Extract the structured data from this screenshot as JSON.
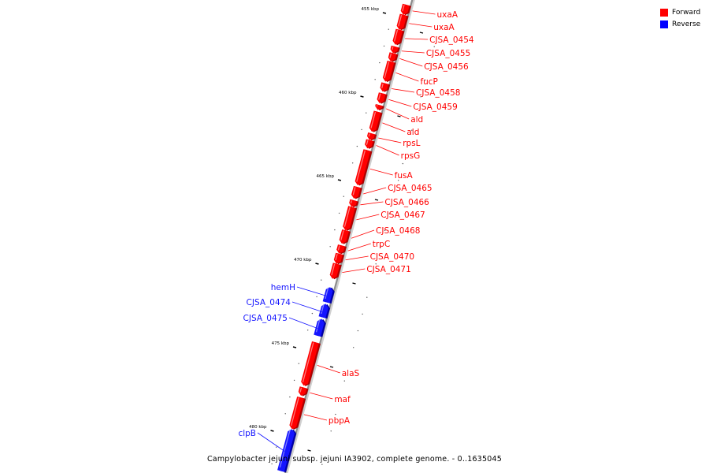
{
  "caption": "Campylobacter jejuni subsp. jejuni IA3902, complete genome. - 0..1635045",
  "legend": [
    {
      "label": "Forward",
      "color": "#ff0000"
    },
    {
      "label": "Reverse",
      "color": "#0000ff"
    }
  ],
  "colors": {
    "forward": "#ff0000",
    "reverse": "#1515ff",
    "backbone": "#8c8c8c"
  },
  "ticks": [
    {
      "kbp": 455,
      "label": "455 kbp"
    },
    {
      "kbp": 460,
      "label": "460 kbp"
    },
    {
      "kbp": 465,
      "label": "465 kbp"
    },
    {
      "kbp": 470,
      "label": "470 kbp"
    },
    {
      "kbp": 475,
      "label": "475 kbp"
    },
    {
      "kbp": 480,
      "label": "480 kbp"
    }
  ],
  "genes": [
    {
      "name": "uxaA",
      "strand": "forward",
      "start_kbp": 454.6,
      "end_kbp": 455.2
    },
    {
      "name": "uxaA",
      "strand": "forward",
      "start_kbp": 455.2,
      "end_kbp": 456.1
    },
    {
      "name": "CJSA_0454",
      "strand": "forward",
      "start_kbp": 456.1,
      "end_kbp": 457.0
    },
    {
      "name": "CJSA_0455",
      "strand": "forward",
      "start_kbp": 457.1,
      "end_kbp": 457.5
    },
    {
      "name": "CJSA_0456",
      "strand": "forward",
      "start_kbp": 457.5,
      "end_kbp": 458.0
    },
    {
      "name": "fucP",
      "strand": "forward",
      "start_kbp": 458.0,
      "end_kbp": 459.2
    },
    {
      "name": "CJSA_0458",
      "strand": "forward",
      "start_kbp": 459.3,
      "end_kbp": 459.8
    },
    {
      "name": "CJSA_0459",
      "strand": "forward",
      "start_kbp": 459.9,
      "end_kbp": 460.5
    },
    {
      "name": "ald",
      "strand": "forward",
      "start_kbp": 460.6,
      "end_kbp": 460.9
    },
    {
      "name": "ald",
      "strand": "forward",
      "start_kbp": 461.0,
      "end_kbp": 462.2
    },
    {
      "name": "rpsL",
      "strand": "forward",
      "start_kbp": 462.3,
      "end_kbp": 462.7
    },
    {
      "name": "rpsG",
      "strand": "forward",
      "start_kbp": 462.7,
      "end_kbp": 463.2
    },
    {
      "name": "fusA",
      "strand": "forward",
      "start_kbp": 463.3,
      "end_kbp": 465.4
    },
    {
      "name": "CJSA_0465",
      "strand": "forward",
      "start_kbp": 465.5,
      "end_kbp": 466.2
    },
    {
      "name": "CJSA_0466",
      "strand": "forward",
      "start_kbp": 466.3,
      "end_kbp": 466.7
    },
    {
      "name": "CJSA_0467",
      "strand": "forward",
      "start_kbp": 466.7,
      "end_kbp": 468.1
    },
    {
      "name": "CJSA_0468",
      "strand": "forward",
      "start_kbp": 468.1,
      "end_kbp": 468.9
    },
    {
      "name": "trpC",
      "strand": "forward",
      "start_kbp": 469.0,
      "end_kbp": 469.5
    },
    {
      "name": "CJSA_0470",
      "strand": "forward",
      "start_kbp": 469.5,
      "end_kbp": 470.1
    },
    {
      "name": "CJSA_0471",
      "strand": "forward",
      "start_kbp": 470.1,
      "end_kbp": 471.0
    },
    {
      "name": "hemH",
      "strand": "reverse",
      "start_kbp": 471.5,
      "end_kbp": 472.4
    },
    {
      "name": "CJSA_0474",
      "strand": "reverse",
      "start_kbp": 472.5,
      "end_kbp": 473.3
    },
    {
      "name": "CJSA_0475",
      "strand": "reverse",
      "start_kbp": 473.4,
      "end_kbp": 474.4
    },
    {
      "name": "alaS",
      "strand": "forward",
      "start_kbp": 474.8,
      "end_kbp": 477.4
    },
    {
      "name": "maf",
      "strand": "forward",
      "start_kbp": 477.5,
      "end_kbp": 478.0
    },
    {
      "name": "pbpA",
      "strand": "forward",
      "start_kbp": 478.1,
      "end_kbp": 480.0
    },
    {
      "name": "clpB",
      "strand": "reverse",
      "start_kbp": 480.0,
      "end_kbp": 482.5
    }
  ]
}
